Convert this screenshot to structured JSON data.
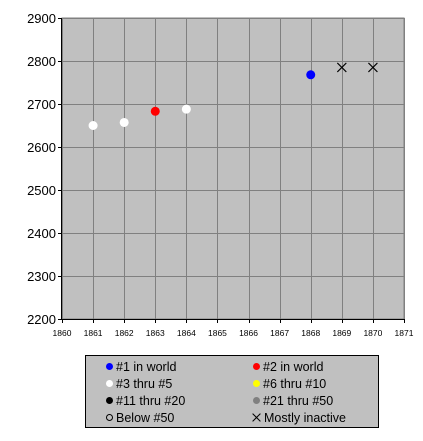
{
  "chart_data": {
    "type": "scatter",
    "title": "",
    "xlabel": "",
    "ylabel": "",
    "xlim": [
      1860,
      1871
    ],
    "ylim": [
      2200,
      2900
    ],
    "x_ticks": [
      "1860",
      "1861",
      "1862",
      "1863",
      "1864",
      "1865",
      "1866",
      "1867",
      "1868",
      "1869",
      "1870",
      "1871"
    ],
    "y_ticks": [
      "2200",
      "2300",
      "2400",
      "2500",
      "2600",
      "2700",
      "2800",
      "2900"
    ],
    "grid": true,
    "plot_background": "#c0c0c0",
    "grid_color": "#808080",
    "points": [
      {
        "x": 1861,
        "y": 2650,
        "category": "#3 thru #5"
      },
      {
        "x": 1862,
        "y": 2657,
        "category": "#3 thru #5"
      },
      {
        "x": 1863,
        "y": 2683,
        "category": "#2 in world"
      },
      {
        "x": 1864,
        "y": 2688,
        "category": "#3 thru #5"
      },
      {
        "x": 1868,
        "y": 2768,
        "category": "#1 in world"
      },
      {
        "x": 1869,
        "y": 2785,
        "category": "Mostly inactive"
      },
      {
        "x": 1870,
        "y": 2785,
        "category": "Mostly inactive"
      }
    ],
    "legend": {
      "placement": "bottom",
      "entries": [
        {
          "label": "#1 in world",
          "color": "#0000ff",
          "marker": "dot"
        },
        {
          "label": "#2 in world",
          "color": "#ff0000",
          "marker": "dot"
        },
        {
          "label": "#3 thru #5",
          "color": "#ffffff",
          "marker": "dot"
        },
        {
          "label": "#6 thru #10",
          "color": "#ffff00",
          "marker": "dot"
        },
        {
          "label": "#11 thru #20",
          "color": "#000000",
          "marker": "dot"
        },
        {
          "label": "#21 thru #50",
          "color": "#808080",
          "marker": "dot"
        },
        {
          "label": "Below #50",
          "color": "#000000",
          "marker": "hollow"
        },
        {
          "label": "Mostly inactive",
          "color": "#000000",
          "marker": "cross"
        }
      ]
    }
  }
}
